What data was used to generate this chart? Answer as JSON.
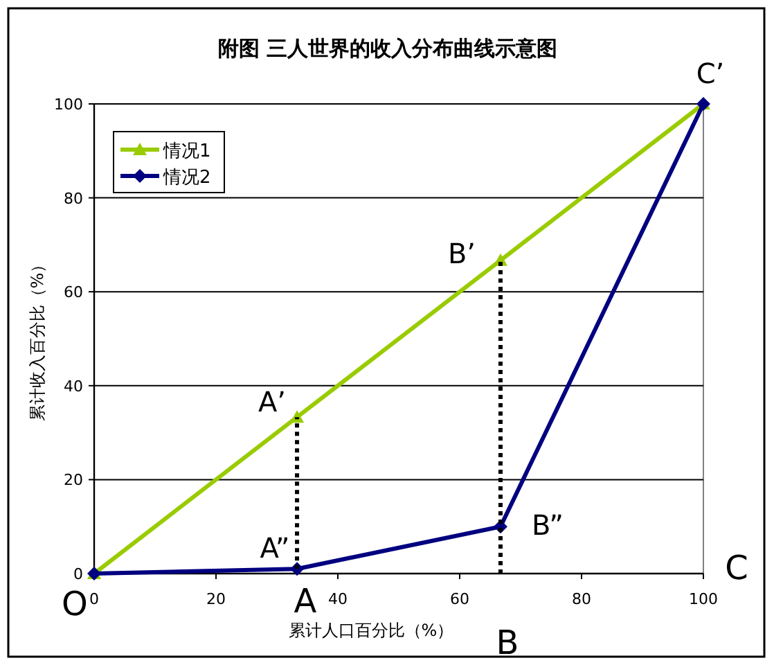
{
  "chart_data": {
    "type": "line",
    "title": "附图 三人世界的收入分布曲线示意图",
    "xlabel": "累计人口百分比（%）",
    "ylabel": "累计收入百分比（%）",
    "xlim": [
      0,
      100
    ],
    "xticks": [
      0,
      20,
      40,
      60,
      80,
      100
    ],
    "ylim": [
      0,
      100
    ],
    "yticks": [
      0,
      20,
      40,
      60,
      80,
      100
    ],
    "grid": "y",
    "legend": "top left",
    "series": [
      {
        "name": "情况1",
        "color": "#99cc00",
        "marker": "triangle",
        "x": [
          0,
          33.3,
          66.7,
          100
        ],
        "values": [
          0,
          33.3,
          66.7,
          100
        ]
      },
      {
        "name": "情况2",
        "color": "#000080",
        "marker": "diamond",
        "x": [
          0,
          33.3,
          66.7,
          100
        ],
        "values": [
          0,
          1,
          10,
          100
        ]
      },
      {
        "color": "#000000",
        "marker": "none",
        "line_style": "dotted",
        "x": [
          33.3,
          33.3
        ],
        "values": [
          1,
          33.3
        ]
      },
      {
        "color": "#000000",
        "marker": "none",
        "line_style": "dotted",
        "x": [
          66.7,
          66.7
        ],
        "values": [
          0,
          66.7
        ]
      }
    ],
    "annotations": [
      {
        "text": "A’",
        "x": 33.3,
        "y": 33.3
      },
      {
        "text": "B’",
        "x": 66.7,
        "y": 66.7
      },
      {
        "text": "C’",
        "x": 100,
        "y": 100
      },
      {
        "text": "A”",
        "x": 33.3,
        "y": 1
      },
      {
        "text": "B”",
        "x": 66.7,
        "y": 10
      },
      {
        "text": "O",
        "x": 0,
        "y": 0
      },
      {
        "text": "A",
        "x": 33.3,
        "y": 0
      },
      {
        "text": "B",
        "x": 66.7,
        "y": 0
      },
      "C"
    ]
  }
}
